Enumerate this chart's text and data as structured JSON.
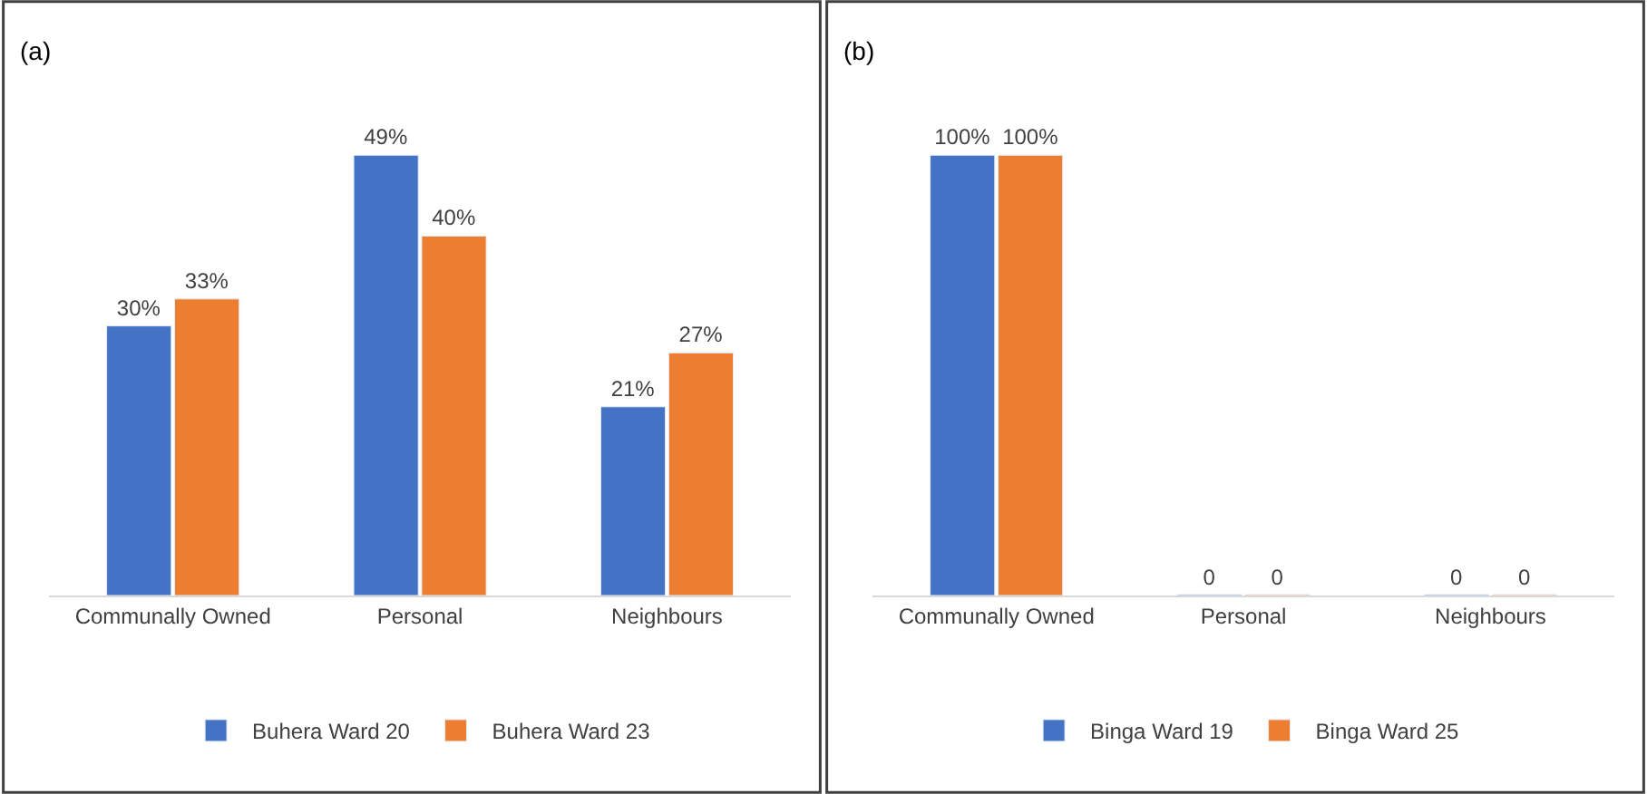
{
  "chart_data": [
    {
      "type": "bar",
      "title": "(a)",
      "categories": [
        "Communally Owned",
        "Personal",
        "Neighbours"
      ],
      "legend": "bottom",
      "series": [
        {
          "name": "Buhera Ward 20",
          "color": "#4472c4",
          "values": [
            30,
            49,
            21
          ],
          "value_labels": [
            "30%",
            "49%",
            "21%"
          ]
        },
        {
          "name": "Buhera Ward 23",
          "color": "#ed7d31",
          "values": [
            33,
            40,
            27
          ],
          "value_labels": [
            "33%",
            "40%",
            "27%"
          ]
        }
      ]
    },
    {
      "type": "bar",
      "title": "(b)",
      "categories": [
        "Communally Owned",
        "Personal",
        "Neighbours"
      ],
      "legend": "bottom",
      "series": [
        {
          "name": "Binga Ward 19",
          "color": "#4472c4",
          "values": [
            100,
            0,
            0
          ],
          "value_labels": [
            "100%",
            "0",
            "0"
          ]
        },
        {
          "name": "Binga Ward 25",
          "color": "#ed7d31",
          "values": [
            100,
            0,
            0
          ],
          "value_labels": [
            "100%",
            "0",
            "0"
          ]
        }
      ]
    }
  ]
}
